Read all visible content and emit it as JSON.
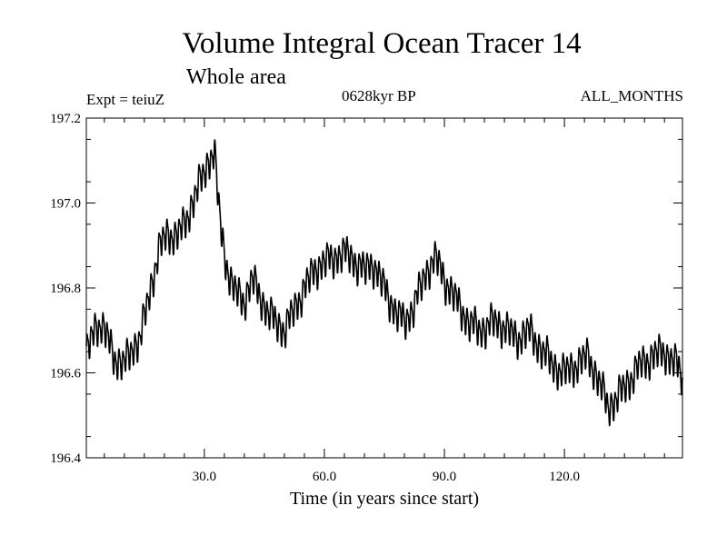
{
  "chart_data": {
    "type": "line",
    "title": "Volume Integral Ocean Tracer 14",
    "subtitle": "Whole area",
    "header_left": "Expt = teiuZ",
    "header_center": "0628kyr BP",
    "header_right": "ALL_MONTHS",
    "xlabel": "Time (in years since start)",
    "ylabel": "",
    "xlim": [
      0.5,
      149.5
    ],
    "ylim": [
      196.4,
      197.2
    ],
    "xticks": [
      30,
      60,
      90,
      120
    ],
    "xtick_labels": [
      "30.0",
      "60.0",
      "90.0",
      "120.0"
    ],
    "yticks": [
      196.4,
      196.6,
      196.8,
      197.0,
      197.2
    ],
    "ytick_labels": [
      "196.4",
      "196.6",
      "196.8",
      "197.0",
      "197.2"
    ],
    "series": [
      {
        "name": "Volume Integral Ocean Tracer 14",
        "seasonal_amplitude": 0.03,
        "x": [
          0.5,
          3,
          5,
          8,
          10,
          12,
          14,
          15,
          17,
          19,
          21,
          23,
          25,
          27,
          29,
          31,
          32.5,
          33.5,
          35,
          37,
          40,
          42,
          44,
          46,
          48,
          50,
          52,
          55,
          58,
          60,
          62,
          64,
          66,
          68,
          70,
          72,
          75,
          78,
          80,
          82,
          84,
          86,
          88,
          90,
          93,
          96,
          99,
          102,
          105,
          108,
          111,
          114,
          117,
          120,
          123,
          126,
          129,
          131,
          133,
          136,
          139,
          142,
          145,
          148,
          149.5
        ],
        "y": [
          196.64,
          196.72,
          196.7,
          196.63,
          196.62,
          196.66,
          196.68,
          196.73,
          196.82,
          196.9,
          196.93,
          196.92,
          196.95,
          197.0,
          197.05,
          197.1,
          197.12,
          197.0,
          196.88,
          196.8,
          196.77,
          196.82,
          196.78,
          196.74,
          196.72,
          196.7,
          196.74,
          196.8,
          196.85,
          196.86,
          196.87,
          196.88,
          196.88,
          196.86,
          196.84,
          196.86,
          196.8,
          196.74,
          196.72,
          196.75,
          196.8,
          196.85,
          196.87,
          196.82,
          196.77,
          196.72,
          196.7,
          196.72,
          196.71,
          196.68,
          196.7,
          196.66,
          196.62,
          196.6,
          196.62,
          196.64,
          196.57,
          196.52,
          196.54,
          196.58,
          196.62,
          196.64,
          196.65,
          196.62,
          196.59
        ]
      }
    ]
  }
}
